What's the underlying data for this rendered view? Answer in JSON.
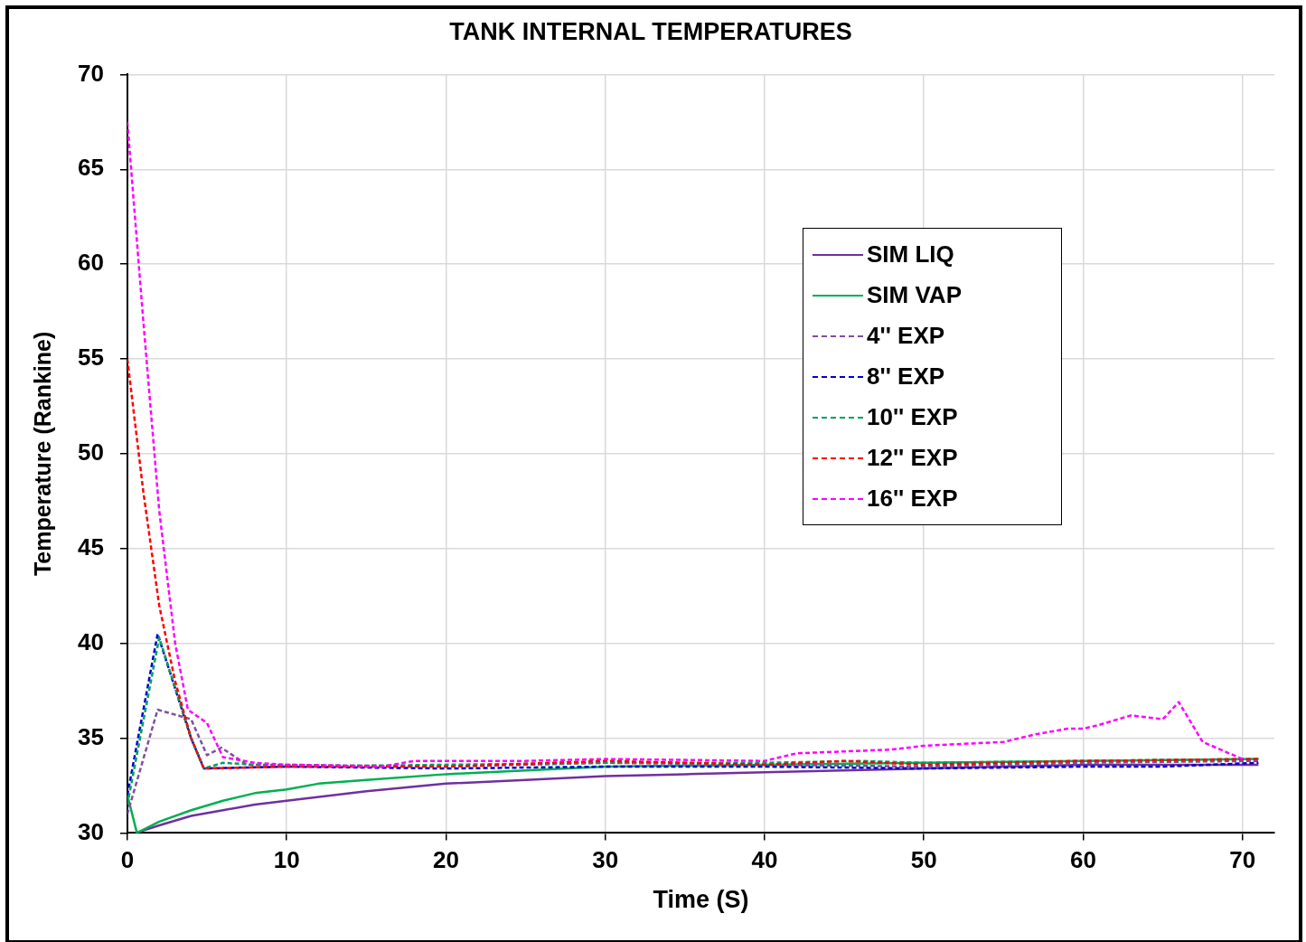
{
  "chart_data": {
    "type": "line",
    "title": "TANK INTERNAL TEMPERATURES",
    "xlabel": "Time (S)",
    "ylabel": "Temperature (Rankine)",
    "xlim": [
      0,
      72
    ],
    "xticks": [
      0,
      10,
      20,
      30,
      40,
      50,
      60,
      70
    ],
    "ylim": [
      30,
      70
    ],
    "yticks": [
      30,
      35,
      40,
      45,
      50,
      55,
      60,
      65,
      70
    ],
    "grid": true,
    "legend": "top right",
    "marker": "none",
    "series": [
      {
        "name": "SIM LIQ",
        "color": "#7030a0",
        "line_style": "solid",
        "x": [
          0.5,
          2,
          4,
          6,
          8,
          10,
          15,
          20,
          25,
          30,
          35,
          40,
          50,
          60,
          71
        ],
        "values": [
          30,
          30.4,
          30.9,
          31.2,
          31.5,
          31.7,
          32.2,
          32.6,
          32.8,
          33,
          33.1,
          33.2,
          33.4,
          33.6,
          33.6
        ]
      },
      {
        "name": "SIM VAP",
        "color": "#00b050",
        "line_style": "solid",
        "x": [
          0,
          0.6,
          2,
          4,
          6,
          8,
          10,
          12,
          15,
          20,
          25,
          30,
          40,
          50,
          60,
          71
        ],
        "values": [
          32,
          30,
          30.6,
          31.2,
          31.7,
          32.1,
          32.3,
          32.6,
          32.8,
          33.1,
          33.3,
          33.5,
          33.6,
          33.7,
          33.8,
          33.9
        ]
      },
      {
        "name": "4'' EXP",
        "color": "#7f4f9f",
        "line_style": "dashed",
        "x": [
          0,
          1.9,
          4,
          5,
          5.9,
          7.5,
          10,
          20,
          30,
          40,
          50,
          60,
          71
        ],
        "values": [
          31,
          36.5,
          36,
          34.1,
          34.5,
          33.6,
          33.6,
          33.5,
          33.7,
          33.6,
          33.5,
          33.7,
          33.8
        ]
      },
      {
        "name": "8'' EXP",
        "color": "#0000cc",
        "line_style": "dashed",
        "x": [
          0,
          1.9,
          4,
          4.8,
          10,
          20,
          30,
          40,
          50,
          60,
          65,
          71
        ],
        "values": [
          32,
          40.5,
          35,
          33.4,
          33.5,
          33.4,
          33.5,
          33.5,
          33.4,
          33.5,
          33.5,
          33.7
        ]
      },
      {
        "name": "10'' EXP",
        "color": "#00a060",
        "line_style": "dashed",
        "x": [
          0,
          2,
          4,
          4.8,
          6,
          10,
          20,
          30,
          40,
          46,
          50,
          60,
          71
        ],
        "values": [
          31.5,
          40.3,
          35,
          33.4,
          33.7,
          33.5,
          33.6,
          33.7,
          33.7,
          33.8,
          33.7,
          33.8,
          33.9
        ]
      },
      {
        "name": "12'' EXP",
        "color": "#ff0000",
        "line_style": "dashed",
        "x": [
          0,
          1,
          2,
          3,
          4,
          4.8,
          10,
          20,
          30,
          40,
          45,
          50,
          60,
          71
        ],
        "values": [
          55,
          48,
          42,
          38,
          35,
          33.4,
          33.5,
          33.5,
          33.8,
          33.6,
          33.8,
          33.6,
          33.8,
          33.9
        ]
      },
      {
        "name": "16'' EXP",
        "color": "#ff00ff",
        "line_style": "dashed",
        "x": [
          0,
          1,
          2,
          3,
          3.8,
          5,
          6,
          8,
          10,
          16,
          18,
          25,
          30,
          40,
          42,
          45,
          48,
          50,
          55,
          57,
          59,
          60,
          61,
          63,
          65,
          66,
          67.5,
          70
        ],
        "values": [
          67.5,
          57,
          47,
          40,
          36.5,
          35.8,
          34,
          33.7,
          33.6,
          33.5,
          33.8,
          33.8,
          33.9,
          33.8,
          34.2,
          34.3,
          34.4,
          34.6,
          34.8,
          35.2,
          35.5,
          35.5,
          35.7,
          36.2,
          36,
          36.9,
          34.8,
          33.9
        ]
      }
    ]
  }
}
